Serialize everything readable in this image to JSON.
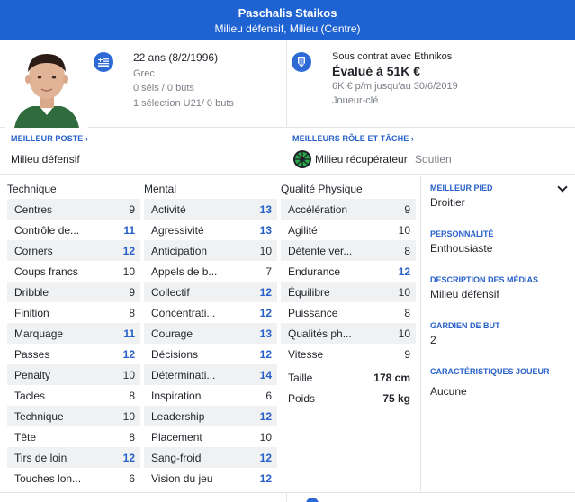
{
  "header": {
    "name": "Paschalis Staikos",
    "position": "Milieu défensif, Milieu (Centre)",
    "bg_color": "#1f62d2"
  },
  "personal": {
    "age": "22 ans (8/2/1996)",
    "nationality": "Grec",
    "caps": "0 séls / 0 buts",
    "u21": "1 sélection U21/ 0 buts",
    "flag_icon": "greece-flag-icon"
  },
  "contract": {
    "status": "Sous contrat avec Ethnikos",
    "value": "Évalué à 51K €",
    "wage": "6K € p/m jusqu'au 30/6/2019",
    "squad_status": "Joueur-clé",
    "club_icon": "ethnikos-crest-icon"
  },
  "best_position": {
    "label": "MEILLEUR POSTE",
    "value": "Milieu défensif"
  },
  "best_role": {
    "label": "MEILLEURS RÔLE ET TÂCHE",
    "role": "Milieu récupérateur",
    "duty": "Soutien"
  },
  "columns": {
    "technical": "Technique",
    "mental": "Mental",
    "physical": "Qualité Physique"
  },
  "technical": [
    {
      "name": "Centres",
      "value": "9",
      "hi": false
    },
    {
      "name": "Contrôle de...",
      "value": "11",
      "hi": true
    },
    {
      "name": "Corners",
      "value": "12",
      "hi": true
    },
    {
      "name": "Coups francs",
      "value": "10",
      "hi": false
    },
    {
      "name": "Dribble",
      "value": "9",
      "hi": false
    },
    {
      "name": "Finition",
      "value": "8",
      "hi": false
    },
    {
      "name": "Marquage",
      "value": "11",
      "hi": true
    },
    {
      "name": "Passes",
      "value": "12",
      "hi": true
    },
    {
      "name": "Penalty",
      "value": "10",
      "hi": false
    },
    {
      "name": "Tacles",
      "value": "8",
      "hi": false
    },
    {
      "name": "Technique",
      "value": "10",
      "hi": false
    },
    {
      "name": "Tête",
      "value": "8",
      "hi": false
    },
    {
      "name": "Tirs de loin",
      "value": "12",
      "hi": true
    },
    {
      "name": "Touches lon...",
      "value": "6",
      "hi": false
    }
  ],
  "mental": [
    {
      "name": "Activité",
      "value": "13",
      "hi": true
    },
    {
      "name": "Agressivité",
      "value": "13",
      "hi": true
    },
    {
      "name": "Anticipation",
      "value": "10",
      "hi": false
    },
    {
      "name": "Appels de b...",
      "value": "7",
      "hi": false
    },
    {
      "name": "Collectif",
      "value": "12",
      "hi": true
    },
    {
      "name": "Concentrati...",
      "value": "12",
      "hi": true
    },
    {
      "name": "Courage",
      "value": "13",
      "hi": true
    },
    {
      "name": "Décisions",
      "value": "12",
      "hi": true
    },
    {
      "name": "Déterminati...",
      "value": "14",
      "hi": true
    },
    {
      "name": "Inspiration",
      "value": "6",
      "hi": false
    },
    {
      "name": "Leadership",
      "value": "12",
      "hi": true
    },
    {
      "name": "Placement",
      "value": "10",
      "hi": false
    },
    {
      "name": "Sang-froid",
      "value": "12",
      "hi": true
    },
    {
      "name": "Vision du jeu",
      "value": "12",
      "hi": true
    }
  ],
  "physical": [
    {
      "name": "Accélération",
      "value": "9",
      "hi": false
    },
    {
      "name": "Agilité",
      "value": "10",
      "hi": false
    },
    {
      "name": "Détente ver...",
      "value": "8",
      "hi": false
    },
    {
      "name": "Endurance",
      "value": "12",
      "hi": true
    },
    {
      "name": "Équilibre",
      "value": "10",
      "hi": false
    },
    {
      "name": "Puissance",
      "value": "8",
      "hi": false
    },
    {
      "name": "Qualités ph...",
      "value": "10",
      "hi": false
    },
    {
      "name": "Vitesse",
      "value": "9",
      "hi": false
    }
  ],
  "body": {
    "height_label": "Taille",
    "height": "178 cm",
    "weight_label": "Poids",
    "weight": "75 kg"
  },
  "side": {
    "foot_label": "MEILLEUR PIED",
    "foot": "Droitier",
    "personality_label": "PERSONNALITÉ",
    "personality": "Enthousiaste",
    "media_label": "DESCRIPTION DES MÉDIAS",
    "media": "Milieu défensif",
    "gk_label": "GARDIEN DE BUT",
    "gk": "2",
    "traits_label": "CARACTÉRISTIQUES JOUEUR",
    "traits": "Aucune"
  },
  "colors": {
    "accent": "#2760c8",
    "highlight_value": "#2760c8",
    "row_stripe": "#f0f1f3"
  }
}
